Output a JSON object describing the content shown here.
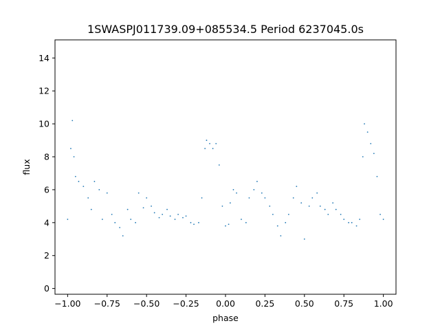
{
  "chart_data": {
    "type": "scatter",
    "title": "1SWASPJ011739.09+085534.5 Period 6237045.0s",
    "xlabel": "phase",
    "ylabel": "flux",
    "xlim": [
      -1.08,
      1.08
    ],
    "ylim": [
      -0.35,
      15.1
    ],
    "xticks": [
      -1.0,
      -0.75,
      -0.5,
      -0.25,
      0.0,
      0.25,
      0.5,
      0.75,
      1.0
    ],
    "xtick_labels": [
      "−1.00",
      "−0.75",
      "−0.50",
      "−0.25",
      "0.00",
      "0.25",
      "0.50",
      "0.75",
      "1.00"
    ],
    "yticks": [
      0,
      2,
      4,
      6,
      8,
      10,
      12,
      14
    ],
    "ytick_labels": [
      "0",
      "2",
      "4",
      "6",
      "8",
      "10",
      "12",
      "14"
    ],
    "grid": false,
    "marker_color": "#1f77b4",
    "marker": "small dots",
    "series": [
      {
        "x": [
          -1.0,
          -0.98,
          -0.97,
          -0.96,
          -0.95,
          -0.93,
          -0.9,
          -0.87,
          -0.85,
          -0.83,
          -0.8,
          -0.78,
          -0.75,
          -0.72,
          -0.7,
          -0.67,
          -0.65,
          -0.62,
          -0.6,
          -0.57,
          -0.55,
          -0.52,
          -0.5,
          -0.47,
          -0.45,
          -0.42,
          -0.4,
          -0.37,
          -0.35,
          -0.32,
          -0.3,
          -0.27,
          -0.25,
          -0.22,
          -0.2,
          -0.17,
          -0.15,
          -0.13,
          -0.12,
          -0.1,
          -0.08,
          -0.06,
          -0.04,
          -0.02,
          0.0,
          0.02,
          0.03,
          0.05,
          0.07,
          0.1,
          0.13,
          0.15,
          0.18,
          0.2,
          0.23,
          0.25,
          0.28,
          0.3,
          0.33,
          0.35,
          0.38,
          0.4,
          0.43,
          0.45,
          0.48,
          0.5,
          0.53,
          0.55,
          0.58,
          0.6,
          0.63,
          0.65,
          0.68,
          0.7,
          0.73,
          0.75,
          0.78,
          0.8,
          0.83,
          0.85,
          0.87,
          0.88,
          0.9,
          0.92,
          0.94,
          0.96,
          0.98,
          1.0
        ],
        "y": [
          4.2,
          8.5,
          10.2,
          8.0,
          6.8,
          6.5,
          6.2,
          5.5,
          4.8,
          6.5,
          6.0,
          4.2,
          5.8,
          4.5,
          4.0,
          3.7,
          3.2,
          4.8,
          4.2,
          4.0,
          5.8,
          4.9,
          5.5,
          5.0,
          4.6,
          4.3,
          4.5,
          4.8,
          4.4,
          4.2,
          4.5,
          4.3,
          4.4,
          4.0,
          3.9,
          4.0,
          5.5,
          8.5,
          9.0,
          8.8,
          8.5,
          8.8,
          7.5,
          5.0,
          3.8,
          3.9,
          5.2,
          6.0,
          5.8,
          4.2,
          4.0,
          5.5,
          6.0,
          6.5,
          5.8,
          5.5,
          5.0,
          4.5,
          3.8,
          3.2,
          4.0,
          4.5,
          5.5,
          6.2,
          5.2,
          3.0,
          5.0,
          5.5,
          5.8,
          5.0,
          4.8,
          4.5,
          5.2,
          4.8,
          4.5,
          4.2,
          4.0,
          4.0,
          3.8,
          4.2,
          8.0,
          10.0,
          9.5,
          8.8,
          8.2,
          6.8,
          4.5,
          4.2
        ]
      }
    ]
  }
}
